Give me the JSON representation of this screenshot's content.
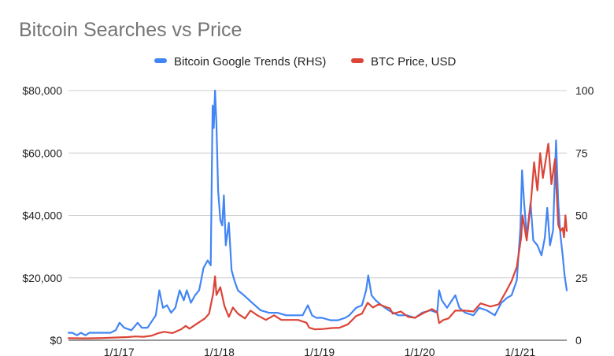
{
  "chart_data": {
    "type": "line",
    "title": "Bitcoin Searches vs Price",
    "legend_position": "top",
    "grid": true,
    "x_axis": {
      "ticks": [
        "1/1/17",
        "1/1/18",
        "1/1/19",
        "1/1/20",
        "1/1/21"
      ],
      "range": [
        "2016-07-01",
        "2021-06-20"
      ]
    },
    "y_left": {
      "ticks": [
        "$0",
        "$20,000",
        "$40,000",
        "$60,000",
        "$80,000"
      ],
      "ylim": [
        0,
        80000
      ]
    },
    "y_right": {
      "ticks": [
        "0",
        "25",
        "50",
        "75",
        "100"
      ],
      "ylim": [
        0,
        100
      ]
    },
    "series": [
      {
        "name": "Bitcoin Google Trends (RHS)",
        "axis": "right",
        "color": "#4285f4",
        "points": [
          [
            "2016-07-01",
            3
          ],
          [
            "2016-07-15",
            3
          ],
          [
            "2016-08-01",
            2
          ],
          [
            "2016-08-15",
            3
          ],
          [
            "2016-09-01",
            2
          ],
          [
            "2016-09-15",
            3
          ],
          [
            "2016-10-01",
            3
          ],
          [
            "2016-11-01",
            3
          ],
          [
            "2016-12-01",
            3
          ],
          [
            "2016-12-20",
            4
          ],
          [
            "2017-01-03",
            7
          ],
          [
            "2017-01-20",
            5
          ],
          [
            "2017-02-15",
            4
          ],
          [
            "2017-03-10",
            7
          ],
          [
            "2017-03-25",
            5
          ],
          [
            "2017-04-15",
            5
          ],
          [
            "2017-05-15",
            10
          ],
          [
            "2017-05-28",
            20
          ],
          [
            "2017-06-10",
            13
          ],
          [
            "2017-06-25",
            14
          ],
          [
            "2017-07-10",
            11
          ],
          [
            "2017-07-25",
            13
          ],
          [
            "2017-08-10",
            20
          ],
          [
            "2017-08-25",
            16
          ],
          [
            "2017-09-05",
            20
          ],
          [
            "2017-09-20",
            15
          ],
          [
            "2017-10-05",
            18
          ],
          [
            "2017-10-20",
            20
          ],
          [
            "2017-11-05",
            29
          ],
          [
            "2017-11-20",
            32
          ],
          [
            "2017-12-01",
            30
          ],
          [
            "2017-12-08",
            94
          ],
          [
            "2017-12-12",
            85
          ],
          [
            "2017-12-17",
            100
          ],
          [
            "2017-12-22",
            86
          ],
          [
            "2017-12-28",
            60
          ],
          [
            "2018-01-05",
            48
          ],
          [
            "2018-01-12",
            46
          ],
          [
            "2018-01-18",
            58
          ],
          [
            "2018-01-25",
            38
          ],
          [
            "2018-02-05",
            47
          ],
          [
            "2018-02-15",
            28
          ],
          [
            "2018-02-25",
            24
          ],
          [
            "2018-03-10",
            20
          ],
          [
            "2018-04-01",
            18
          ],
          [
            "2018-05-01",
            15
          ],
          [
            "2018-06-01",
            12
          ],
          [
            "2018-07-01",
            11
          ],
          [
            "2018-08-01",
            11
          ],
          [
            "2018-09-01",
            10
          ],
          [
            "2018-10-01",
            10
          ],
          [
            "2018-11-01",
            10
          ],
          [
            "2018-11-20",
            14
          ],
          [
            "2018-12-05",
            10
          ],
          [
            "2018-12-20",
            9
          ],
          [
            "2019-01-10",
            9
          ],
          [
            "2019-02-10",
            8
          ],
          [
            "2019-03-10",
            8
          ],
          [
            "2019-04-05",
            9
          ],
          [
            "2019-04-20",
            10
          ],
          [
            "2019-05-15",
            13
          ],
          [
            "2019-06-05",
            14
          ],
          [
            "2019-06-20",
            20
          ],
          [
            "2019-06-28",
            26
          ],
          [
            "2019-07-10",
            18
          ],
          [
            "2019-07-25",
            16
          ],
          [
            "2019-08-15",
            14
          ],
          [
            "2019-09-10",
            12
          ],
          [
            "2019-10-15",
            10
          ],
          [
            "2019-11-15",
            10
          ],
          [
            "2019-12-15",
            9
          ],
          [
            "2020-01-10",
            11
          ],
          [
            "2020-02-10",
            12
          ],
          [
            "2020-03-05",
            11
          ],
          [
            "2020-03-12",
            20
          ],
          [
            "2020-03-22",
            16
          ],
          [
            "2020-04-10",
            13
          ],
          [
            "2020-05-10",
            18
          ],
          [
            "2020-05-25",
            13
          ],
          [
            "2020-06-15",
            11
          ],
          [
            "2020-07-15",
            10
          ],
          [
            "2020-08-05",
            13
          ],
          [
            "2020-09-01",
            12
          ],
          [
            "2020-10-01",
            10
          ],
          [
            "2020-10-25",
            15
          ],
          [
            "2020-11-15",
            17
          ],
          [
            "2020-12-01",
            18
          ],
          [
            "2020-12-20",
            24
          ],
          [
            "2021-01-02",
            45
          ],
          [
            "2021-01-08",
            68
          ],
          [
            "2021-01-15",
            56
          ],
          [
            "2021-01-25",
            42
          ],
          [
            "2021-02-08",
            55
          ],
          [
            "2021-02-18",
            40
          ],
          [
            "2021-03-05",
            38
          ],
          [
            "2021-03-20",
            34
          ],
          [
            "2021-04-01",
            41
          ],
          [
            "2021-04-10",
            53
          ],
          [
            "2021-04-20",
            38
          ],
          [
            "2021-05-01",
            44
          ],
          [
            "2021-05-12",
            80
          ],
          [
            "2021-05-20",
            55
          ],
          [
            "2021-05-28",
            42
          ],
          [
            "2021-06-05",
            34
          ],
          [
            "2021-06-12",
            26
          ],
          [
            "2021-06-20",
            20
          ]
        ]
      },
      {
        "name": "BTC Price, USD",
        "axis": "left",
        "color": "#db4437",
        "points": [
          [
            "2016-07-01",
            650
          ],
          [
            "2016-09-01",
            600
          ],
          [
            "2016-11-01",
            700
          ],
          [
            "2017-01-01",
            900
          ],
          [
            "2017-02-01",
            1000
          ],
          [
            "2017-03-01",
            1200
          ],
          [
            "2017-04-01",
            1100
          ],
          [
            "2017-05-01",
            1500
          ],
          [
            "2017-05-25",
            2300
          ],
          [
            "2017-06-15",
            2700
          ],
          [
            "2017-07-15",
            2300
          ],
          [
            "2017-08-15",
            3500
          ],
          [
            "2017-09-01",
            4600
          ],
          [
            "2017-09-15",
            3700
          ],
          [
            "2017-10-15",
            5500
          ],
          [
            "2017-11-10",
            7000
          ],
          [
            "2017-11-25",
            8500
          ],
          [
            "2017-12-10",
            15000
          ],
          [
            "2017-12-17",
            20500
          ],
          [
            "2017-12-22",
            14500
          ],
          [
            "2018-01-05",
            17000
          ],
          [
            "2018-01-20",
            11000
          ],
          [
            "2018-02-05",
            7500
          ],
          [
            "2018-02-20",
            10500
          ],
          [
            "2018-03-10",
            8500
          ],
          [
            "2018-04-05",
            7000
          ],
          [
            "2018-04-25",
            9500
          ],
          [
            "2018-05-20",
            8000
          ],
          [
            "2018-06-20",
            6500
          ],
          [
            "2018-07-20",
            8000
          ],
          [
            "2018-08-15",
            6500
          ],
          [
            "2018-09-15",
            6500
          ],
          [
            "2018-10-15",
            6500
          ],
          [
            "2018-11-15",
            5600
          ],
          [
            "2018-11-25",
            4000
          ],
          [
            "2018-12-15",
            3500
          ],
          [
            "2019-01-15",
            3600
          ],
          [
            "2019-02-15",
            3900
          ],
          [
            "2019-03-15",
            4000
          ],
          [
            "2019-04-15",
            5100
          ],
          [
            "2019-05-15",
            7800
          ],
          [
            "2019-06-05",
            8500
          ],
          [
            "2019-06-26",
            12000
          ],
          [
            "2019-07-15",
            10500
          ],
          [
            "2019-08-05",
            11500
          ],
          [
            "2019-09-15",
            10200
          ],
          [
            "2019-09-25",
            8500
          ],
          [
            "2019-10-25",
            9200
          ],
          [
            "2019-11-20",
            7500
          ],
          [
            "2019-12-15",
            7200
          ],
          [
            "2020-01-15",
            8700
          ],
          [
            "2020-02-15",
            10000
          ],
          [
            "2020-03-05",
            9000
          ],
          [
            "2020-03-12",
            5500
          ],
          [
            "2020-03-28",
            6500
          ],
          [
            "2020-04-15",
            7000
          ],
          [
            "2020-05-10",
            9500
          ],
          [
            "2020-06-15",
            9500
          ],
          [
            "2020-07-15",
            9200
          ],
          [
            "2020-08-10",
            11800
          ],
          [
            "2020-09-15",
            10800
          ],
          [
            "2020-10-15",
            11500
          ],
          [
            "2020-11-10",
            15500
          ],
          [
            "2020-12-01",
            19000
          ],
          [
            "2020-12-20",
            23500
          ],
          [
            "2021-01-05",
            33000
          ],
          [
            "2021-01-10",
            40000
          ],
          [
            "2021-01-25",
            32000
          ],
          [
            "2021-02-10",
            45000
          ],
          [
            "2021-02-21",
            57000
          ],
          [
            "2021-03-05",
            48000
          ],
          [
            "2021-03-15",
            60000
          ],
          [
            "2021-03-25",
            52000
          ],
          [
            "2021-04-14",
            63000
          ],
          [
            "2021-04-25",
            50000
          ],
          [
            "2021-05-08",
            58000
          ],
          [
            "2021-05-15",
            46000
          ],
          [
            "2021-05-20",
            37000
          ],
          [
            "2021-05-28",
            35000
          ],
          [
            "2021-06-05",
            36000
          ],
          [
            "2021-06-10",
            33000
          ],
          [
            "2021-06-15",
            40000
          ],
          [
            "2021-06-20",
            35000
          ]
        ]
      }
    ]
  }
}
